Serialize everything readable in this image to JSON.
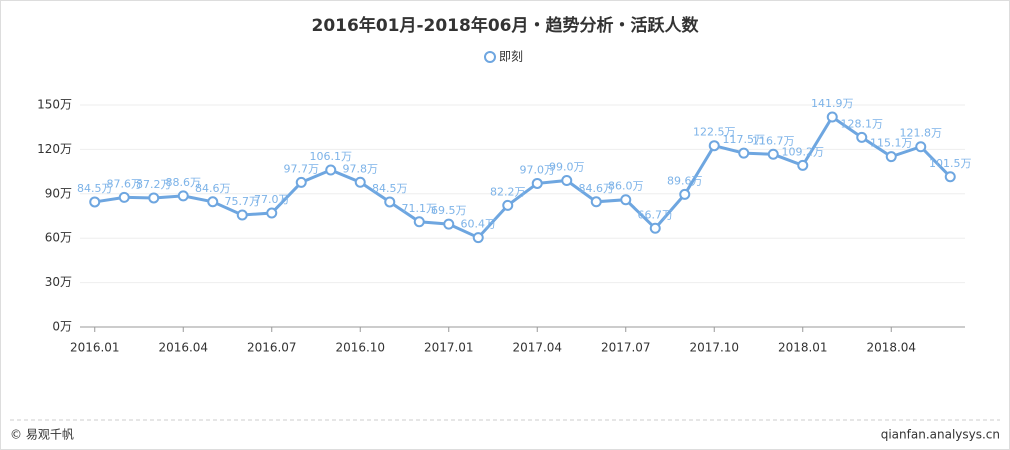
{
  "chart_data": {
    "type": "line",
    "title": "2016年01月-2018年06月・趋势分析・活跃人数",
    "categories": [
      "2016.01",
      null,
      null,
      "2016.04",
      null,
      null,
      "2016.07",
      null,
      null,
      "2016.10",
      null,
      null,
      "2017.01",
      null,
      null,
      "2017.04",
      null,
      null,
      "2017.07",
      null,
      null,
      "2017.10",
      null,
      null,
      "2018.01",
      null,
      null,
      "2018.04",
      null,
      null
    ],
    "series": [
      {
        "name": "即刻",
        "color": "#6ea6e0",
        "values": [
          84.5,
          87.6,
          87.2,
          88.6,
          84.6,
          75.7,
          77.0,
          97.7,
          106.1,
          97.8,
          84.5,
          71.1,
          69.5,
          60.4,
          82.2,
          97.0,
          99.0,
          84.6,
          86.0,
          66.7,
          89.6,
          122.5,
          117.5,
          116.7,
          109.2,
          141.9,
          128.1,
          115.1,
          121.8,
          101.5
        ],
        "value_labels": [
          "84.5万",
          "87.6万",
          "87.2万",
          "88.6万",
          "84.6万",
          "75.7万",
          "77.0万",
          "97.7万",
          "106.1万",
          "97.8万",
          "84.5万",
          "71.1万",
          "69.5万",
          "60.4万",
          "82.2万",
          "97.0万",
          "99.0万",
          "84.6万",
          "86.0万",
          "66.7万",
          "89.6万",
          "122.5万",
          "117.5万",
          "116.7万",
          "109.2万",
          "141.9万",
          "128.1万",
          "115.1万",
          "121.8万",
          "101.5万"
        ]
      }
    ],
    "ylim": [
      0,
      150
    ],
    "yticks": [
      {
        "value": 0,
        "label": "0万"
      },
      {
        "value": 30,
        "label": "30万"
      },
      {
        "value": 60,
        "label": "60万"
      },
      {
        "value": 90,
        "label": "90万"
      },
      {
        "value": 120,
        "label": "120万"
      },
      {
        "value": 150,
        "label": "150万"
      }
    ],
    "grid": true,
    "footer_left": "© 易观千帆",
    "footer_right": "qianfan.analysys.cn"
  }
}
